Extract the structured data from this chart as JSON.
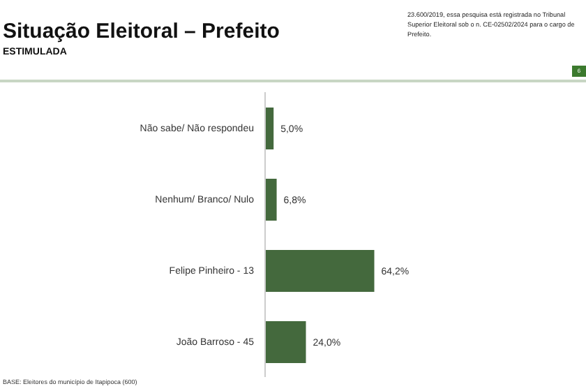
{
  "chart_data": {
    "type": "bar",
    "orientation": "horizontal",
    "title": "Situação Eleitoral – Prefeito",
    "subtitle": "ESTIMULADA",
    "categories": [
      "Não sabe/ Não respondeu",
      "Nenhum/ Branco/ Nulo",
      "Felipe Pinheiro - 13",
      "João Barroso - 45"
    ],
    "values": [
      5.0,
      6.8,
      64.2,
      24.0
    ],
    "value_labels": [
      "5,0%",
      "6,8%",
      "64,2%",
      "24,0%"
    ],
    "color": "#44693d",
    "annotations": [
      "23.600/2019, essa pesquisa está registrada no Tribunal Superior Eleitoral sob o n. CE-02502/2024 para o cargo de Prefeito.",
      "BASE: Eleitores do município de Itapipoca (600)",
      "6"
    ]
  }
}
